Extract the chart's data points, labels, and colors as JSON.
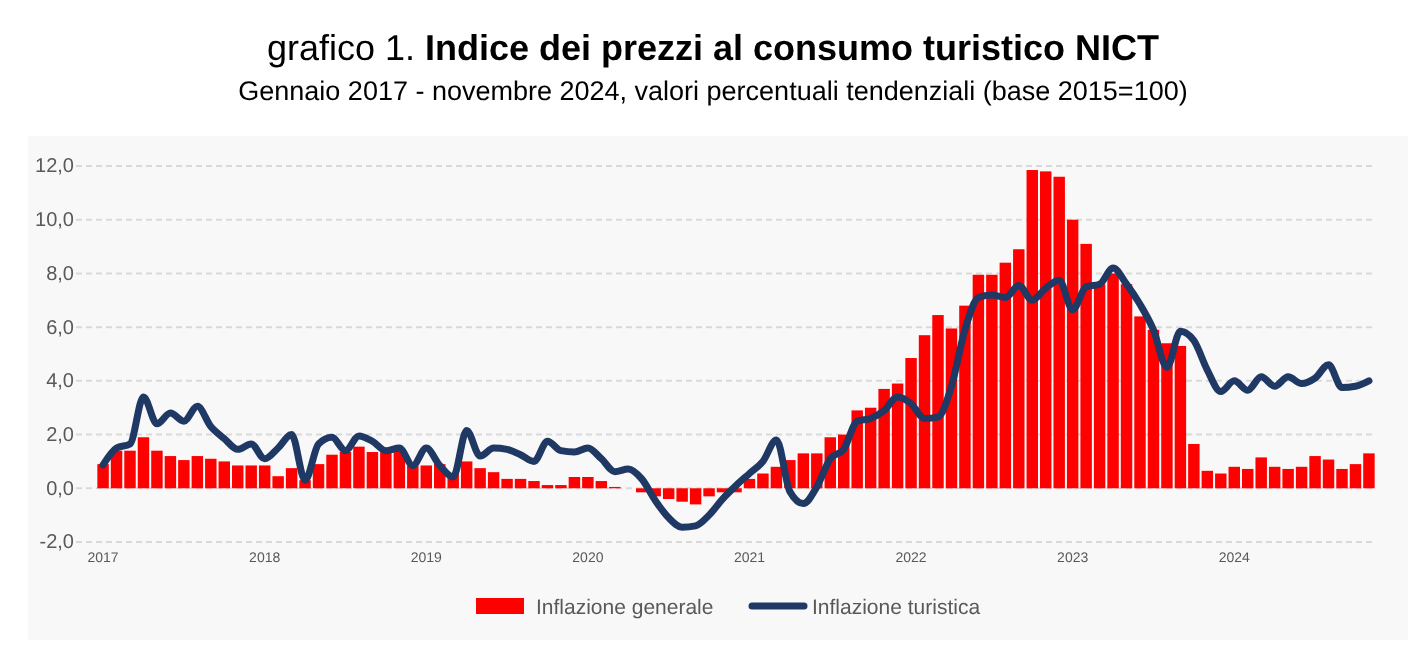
{
  "chart_data": {
    "type": "bar",
    "title": "grafico 1. Indice dei prezzi al consumo turistico NICT",
    "subtitle": "Gennaio 2017 - novembre 2024, valori percentuali tendenziali (base 2015=100)",
    "categories": [
      "2017",
      null,
      null,
      null,
      null,
      null,
      null,
      null,
      null,
      null,
      null,
      null,
      "2018",
      null,
      null,
      null,
      null,
      null,
      null,
      null,
      null,
      null,
      null,
      null,
      "2019",
      null,
      null,
      null,
      null,
      null,
      null,
      null,
      null,
      null,
      null,
      null,
      "2020",
      null,
      null,
      null,
      null,
      null,
      null,
      null,
      null,
      null,
      null,
      null,
      "2021",
      null,
      null,
      null,
      null,
      null,
      null,
      null,
      null,
      null,
      null,
      null,
      "2022",
      null,
      null,
      null,
      null,
      null,
      null,
      null,
      null,
      null,
      null,
      null,
      "2023",
      null,
      null,
      null,
      null,
      null,
      null,
      null,
      null,
      null,
      null,
      null,
      "2024",
      null,
      null,
      null,
      null,
      null,
      null,
      null,
      null,
      null,
      null
    ],
    "series": [
      {
        "name": "Inflazione generale",
        "color": "#ff0000",
        "values": [
          0.9,
          1.4,
          1.4,
          1.9,
          1.4,
          1.2,
          1.05,
          1.2,
          1.1,
          1.0,
          0.85,
          0.85,
          0.85,
          0.45,
          0.75,
          0.3,
          0.9,
          1.25,
          1.35,
          1.55,
          1.35,
          1.35,
          1.4,
          0.85,
          0.85,
          0.9,
          0.55,
          1.0,
          0.75,
          0.6,
          0.35,
          0.35,
          0.27,
          0.12,
          0.12,
          0.42,
          0.42,
          0.27,
          0.05,
          0.0,
          -0.15,
          -0.3,
          -0.4,
          -0.5,
          -0.6,
          -0.3,
          -0.15,
          -0.15,
          0.35,
          0.55,
          0.8,
          1.05,
          1.3,
          1.3,
          1.9,
          2.0,
          2.9,
          3.0,
          3.7,
          3.9,
          4.85,
          5.7,
          6.45,
          5.95,
          6.8,
          7.95,
          7.95,
          8.4,
          8.9,
          11.85,
          11.8,
          11.6,
          10.0,
          9.1,
          7.6,
          8.0,
          7.6,
          6.4,
          5.9,
          5.4,
          5.3,
          1.65,
          0.65,
          0.55,
          0.8,
          0.72,
          1.15,
          0.8,
          0.72,
          0.8,
          1.2,
          1.07,
          0.72,
          0.9,
          1.3
        ]
      },
      {
        "name": "Inflazione turistica",
        "type": "line",
        "color": "#1f3864",
        "values": [
          0.87,
          1.5,
          1.65,
          3.4,
          2.4,
          2.8,
          2.5,
          3.05,
          2.3,
          1.85,
          1.45,
          1.65,
          1.1,
          1.5,
          2.0,
          0.3,
          1.65,
          1.9,
          1.4,
          1.95,
          1.75,
          1.4,
          1.5,
          0.85,
          1.5,
          0.85,
          0.42,
          2.15,
          1.2,
          1.5,
          1.45,
          1.25,
          1.0,
          1.75,
          1.4,
          1.35,
          1.5,
          1.1,
          0.62,
          0.72,
          0.35,
          -0.45,
          -1.1,
          -1.45,
          -1.4,
          -1.0,
          -0.4,
          0.1,
          0.55,
          1.0,
          1.8,
          -0.12,
          -0.57,
          0.05,
          1.1,
          1.45,
          2.5,
          2.6,
          2.9,
          3.4,
          3.15,
          2.6,
          2.65,
          3.8,
          5.9,
          7.1,
          7.2,
          7.1,
          7.55,
          7.0,
          7.45,
          7.75,
          6.65,
          7.5,
          7.6,
          8.2,
          7.6,
          6.85,
          5.9,
          4.5,
          5.85,
          5.5,
          4.4,
          3.6,
          4.0,
          3.65,
          4.15,
          3.8,
          4.15,
          3.9,
          4.1,
          4.6,
          3.75,
          3.8,
          4.0
        ]
      }
    ],
    "ylim": [
      -2,
      12
    ],
    "yticks": [
      {
        "value": -2,
        "label": "-2,0"
      },
      {
        "value": 0,
        "label": "0,0"
      },
      {
        "value": 2,
        "label": "2,0"
      },
      {
        "value": 4,
        "label": "4,0"
      },
      {
        "value": 6,
        "label": "6,0"
      },
      {
        "value": 8,
        "label": "8,0"
      },
      {
        "value": 10,
        "label": "10,0"
      },
      {
        "value": 12,
        "label": "12,0"
      }
    ],
    "grid": "y",
    "legend": "bottom",
    "line_style": "solid",
    "marker": "none"
  }
}
